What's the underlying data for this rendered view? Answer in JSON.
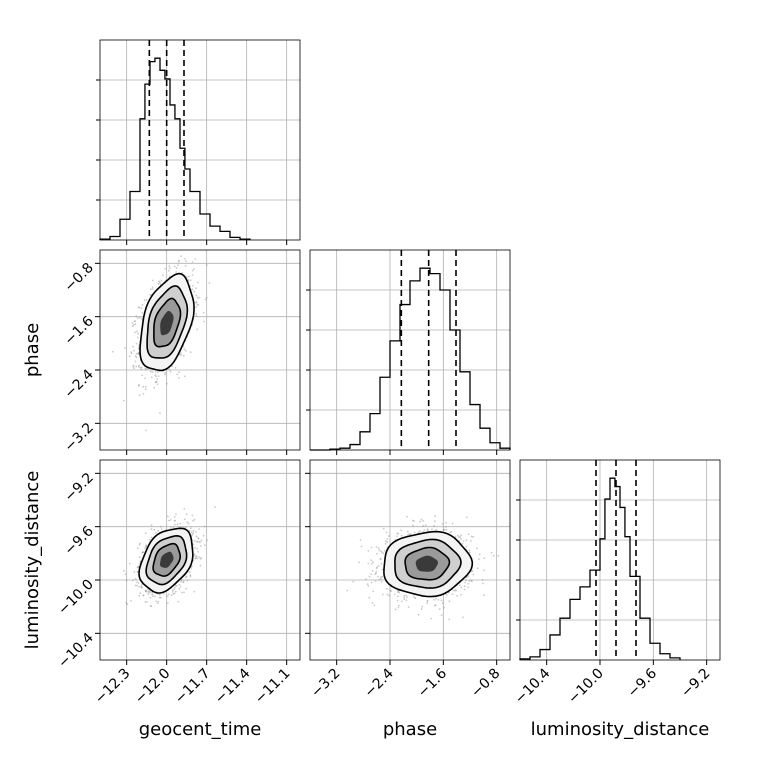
{
  "chart_data": {
    "type": "corner",
    "parameters": [
      "geocent_time",
      "phase",
      "luminosity_distance"
    ],
    "axes": {
      "geocent_time": {
        "range": [
          -12.5,
          -11.0
        ],
        "ticks": [
          -12.3,
          -12.0,
          -11.7,
          -11.4,
          -11.1
        ],
        "tick_labels": [
          "−12.3",
          "−12.0",
          "−11.7",
          "−11.4",
          "−11.1"
        ]
      },
      "phase": {
        "range": [
          -3.6,
          -0.6
        ],
        "ticks": [
          -3.2,
          -2.4,
          -1.6,
          -0.8
        ],
        "tick_labels": [
          "−3.2",
          "−2.4",
          "−1.6",
          "−0.8"
        ]
      },
      "luminosity_distance": {
        "range": [
          -10.6,
          -9.1
        ],
        "ticks": [
          -10.4,
          -10.0,
          -9.6,
          -9.2
        ],
        "tick_labels": [
          "−10.4",
          "−10.0",
          "−9.6",
          "−9.2"
        ]
      }
    },
    "marginals": [
      {
        "parameter": "geocent_time",
        "quantiles": [
          -12.13,
          -12.0,
          -11.87
        ],
        "bin_edges": [
          -12.5,
          -12.425,
          -12.35,
          -12.275,
          -12.2,
          -12.163,
          -12.125,
          -12.088,
          -12.05,
          -12.013,
          -11.975,
          -11.938,
          -11.9,
          -11.863,
          -11.825,
          -11.75,
          -11.675,
          -11.6,
          -11.525,
          -11.45,
          -11.375
        ],
        "counts": [
          0.5,
          2,
          12,
          28,
          70,
          90,
          103,
          105,
          98,
          93,
          78,
          70,
          53,
          41,
          28,
          15,
          8,
          5,
          1.5,
          0.5
        ]
      },
      {
        "parameter": "phase",
        "quantiles": [
          -2.23,
          -1.82,
          -1.41
        ],
        "bin_edges": [
          -3.6,
          -3.45,
          -3.3,
          -3.15,
          -3.0,
          -2.85,
          -2.7,
          -2.55,
          -2.4,
          -2.25,
          -2.1,
          -1.95,
          -1.8,
          -1.65,
          -1.5,
          -1.35,
          -1.2,
          -1.05,
          -0.9,
          -0.75,
          -0.6
        ],
        "counts": [
          0,
          0,
          0.5,
          1,
          3,
          10,
          20,
          40,
          60,
          80,
          93,
          100,
          97,
          88,
          66,
          43,
          25,
          12,
          4,
          1
        ]
      },
      {
        "parameter": "luminosity_distance",
        "quantiles": [
          -10.03,
          -9.88,
          -9.73
        ],
        "bin_edges": [
          -10.6,
          -10.525,
          -10.45,
          -10.375,
          -10.3,
          -10.225,
          -10.15,
          -10.075,
          -10.0,
          -9.963,
          -9.925,
          -9.888,
          -9.85,
          -9.813,
          -9.775,
          -9.7,
          -9.625,
          -9.55,
          -9.475,
          -9.4
        ],
        "counts": [
          0.5,
          1.5,
          5,
          12,
          20,
          29,
          35,
          43,
          58,
          77,
          87,
          83,
          73,
          59,
          40,
          20,
          8,
          3,
          1
        ]
      }
    ],
    "joints": [
      {
        "x": "geocent_time",
        "y": "phase",
        "center": [
          -12.0,
          -1.7
        ],
        "sigma": [
          0.1,
          0.36
        ],
        "rho": 0.4
      },
      {
        "x": "geocent_time",
        "y": "luminosity_distance",
        "center": [
          -12.0,
          -9.85
        ],
        "sigma": [
          0.1,
          0.12
        ],
        "rho": 0.35
      },
      {
        "x": "phase",
        "y": "luminosity_distance",
        "center": [
          -1.85,
          -9.88
        ],
        "sigma": [
          0.33,
          0.12
        ],
        "rho": 0.05
      }
    ]
  }
}
